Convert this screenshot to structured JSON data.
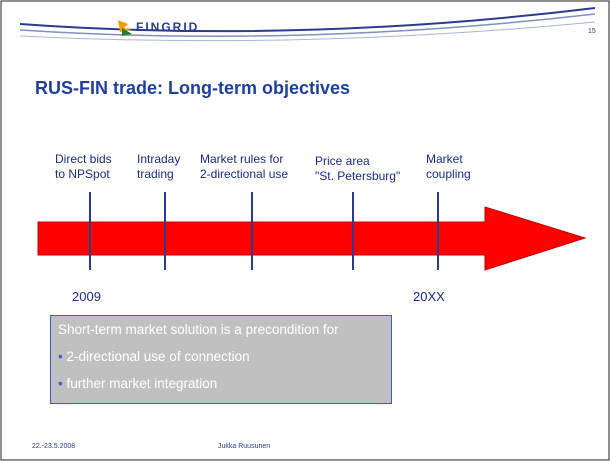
{
  "header": {
    "logo": "FINGRID",
    "page_number": "15"
  },
  "title": "RUS-FIN trade: Long-term objectives",
  "timeline": {
    "milestones": [
      {
        "lines": [
          "Direct bids",
          "to NPSpot"
        ]
      },
      {
        "lines": [
          "Intraday",
          "trading"
        ]
      },
      {
        "lines": [
          "Market rules for",
          "2-directional use"
        ]
      },
      {
        "lines": [
          "Price area",
          "\"St. Petersburg\""
        ]
      },
      {
        "lines": [
          "Market",
          "coupling"
        ]
      }
    ],
    "start_label": "2009",
    "end_label": "20XX"
  },
  "box": {
    "heading": "Short-term market solution is a precondition for",
    "bullets": [
      "2-directional use of connection",
      "further market integration"
    ]
  },
  "footer": {
    "date": "22.-23.5.2008",
    "author": "Jukka Ruusunen"
  }
}
